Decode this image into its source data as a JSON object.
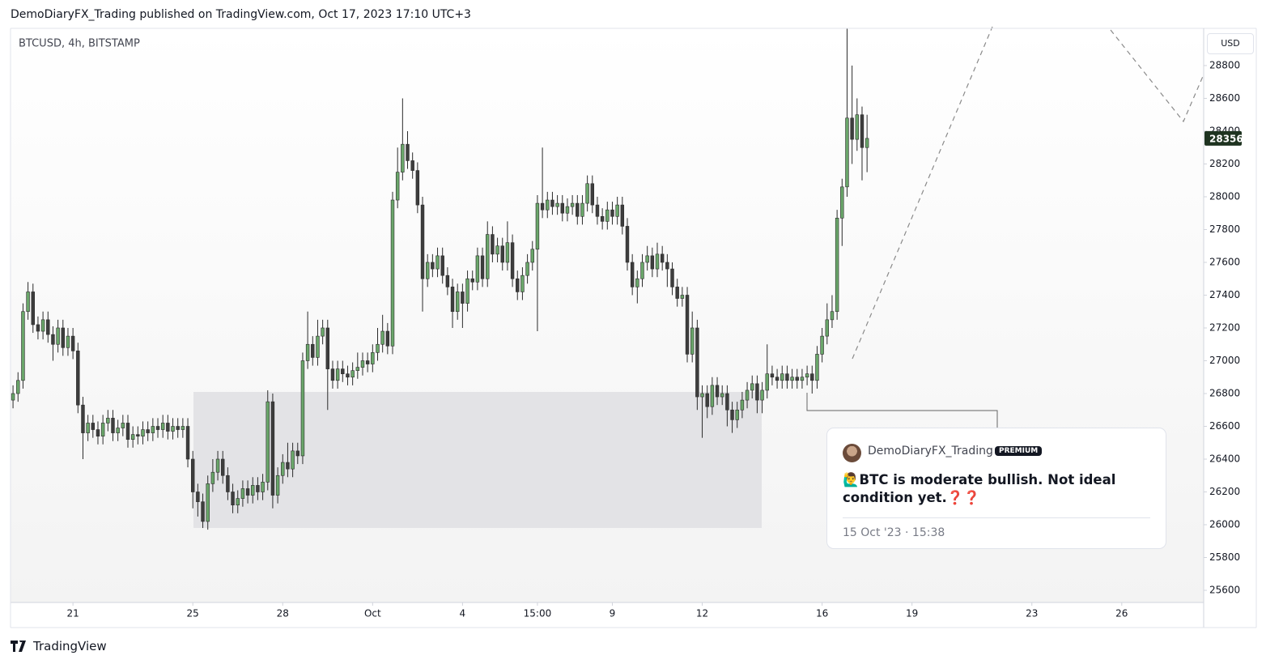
{
  "header": "DemoDiaryFX_Trading published on TradingView.com, Oct 17, 2023 17:10 UTC+3",
  "footer": "TradingView",
  "chart_data": {
    "type": "candlestick",
    "title": "BTCUSD, 4h, BITSTAMP",
    "currency": "USD",
    "up_color": "#6aa66a",
    "down_color": "#3d3d3d",
    "outline_color": "#2b2b2b",
    "last_price_color": "#1e3320",
    "xlim": [
      -0.5,
      238.4
    ],
    "ylim": [
      25526,
      29027
    ],
    "yticks": [
      25600,
      25800,
      26000,
      26200,
      26400,
      26600,
      26800,
      27000,
      27200,
      27400,
      27600,
      27800,
      28000,
      28200,
      28400,
      28600,
      28800
    ],
    "xticks": [
      {
        "value": 12,
        "label": "21"
      },
      {
        "value": 36,
        "label": "25"
      },
      {
        "value": 54,
        "label": "28"
      },
      {
        "value": 72,
        "label": "Oct"
      },
      {
        "value": 90,
        "label": "4"
      },
      {
        "value": 105,
        "label": "15:00"
      },
      {
        "value": 120,
        "label": "9"
      },
      {
        "value": 138,
        "label": "12"
      },
      {
        "value": 162,
        "label": "16"
      },
      {
        "value": 180,
        "label": "19"
      },
      {
        "value": 204,
        "label": "23"
      },
      {
        "value": 222,
        "label": "26"
      }
    ],
    "open": [
      26760,
      26800,
      26880,
      27300,
      27420,
      27220,
      27180,
      27250,
      27160,
      27100,
      27200,
      27080,
      27150,
      27060,
      26730,
      26560,
      26620,
      26580,
      26540,
      26620,
      26650,
      26560,
      26590,
      26620,
      26520,
      26550,
      26540,
      26580,
      26560,
      26600,
      26580,
      26620,
      26570,
      26600,
      26580,
      26600,
      26400,
      26200,
      26140,
      26020,
      26250,
      26320,
      26400,
      26300,
      26200,
      26120,
      26160,
      26220,
      26180,
      26240,
      26200,
      26260,
      26750,
      26180,
      26300,
      26380,
      26340,
      26450,
      26420,
      27000,
      27100,
      27020,
      27150,
      27200,
      26950,
      26880,
      26950,
      26920,
      26900,
      26940,
      26960,
      27000,
      26980,
      27050,
      27100,
      27180,
      27090,
      27980,
      28150,
      28320,
      28220,
      28160,
      27950,
      27500,
      27600,
      27560,
      27640,
      27520,
      27450,
      27300,
      27420,
      27350,
      27500,
      27480,
      27640,
      27500,
      27770,
      27650,
      27700,
      27600,
      27720,
      27500,
      27420,
      27520,
      27600,
      27680,
      27960,
      27920,
      27980,
      27940,
      27960,
      27900,
      27940,
      27960,
      27880,
      27960,
      28080,
      27950,
      27880,
      27850,
      27920,
      27880,
      27950,
      27820,
      27600,
      27450,
      27500,
      27600,
      27640,
      27560,
      27650,
      27600,
      27560,
      27450,
      27380,
      27400,
      27040,
      27200,
      26780,
      26800,
      26720,
      26850,
      26780,
      26800,
      26700,
      26640,
      26700,
      26760,
      26820,
      26860,
      26760,
      26820,
      26920,
      26900,
      26880,
      26920,
      26880,
      26900,
      26880,
      26900,
      26920,
      26880,
      27040,
      27150,
      27250,
      27300,
      27870,
      28060,
      28480,
      28350,
      28500,
      28300
    ],
    "high": [
      26850,
      26930,
      27350,
      27480,
      27470,
      27270,
      27300,
      27300,
      27210,
      27250,
      27250,
      27200,
      27200,
      27110,
      26780,
      26670,
      26670,
      26630,
      26670,
      26700,
      26700,
      26640,
      26670,
      26670,
      26600,
      26600,
      26630,
      26630,
      26650,
      26650,
      26670,
      26670,
      26650,
      26650,
      26650,
      26650,
      26450,
      26250,
      26190,
      26300,
      26400,
      26450,
      26450,
      26350,
      26250,
      26210,
      26270,
      26270,
      26290,
      26290,
      26310,
      26820,
      26800,
      26350,
      26430,
      26500,
      26500,
      26500,
      27050,
      27300,
      27150,
      27250,
      27250,
      27250,
      27000,
      27000,
      27000,
      26970,
      26990,
      27050,
      27050,
      27050,
      27100,
      27200,
      27280,
      27230,
      28030,
      28300,
      28600,
      28400,
      28270,
      28210,
      28000,
      27650,
      27650,
      27690,
      27690,
      27570,
      27500,
      27470,
      27470,
      27550,
      27550,
      27690,
      27690,
      27850,
      27820,
      27750,
      27750,
      27850,
      27770,
      27550,
      27570,
      27650,
      27730,
      28010,
      28300,
      28030,
      28030,
      28010,
      28010,
      27990,
      28010,
      28010,
      28010,
      28130,
      28130,
      28000,
      27930,
      27970,
      27970,
      28000,
      28000,
      27870,
      27650,
      27550,
      27650,
      27700,
      27690,
      27720,
      27700,
      27650,
      27600,
      27500,
      27450,
      27450,
      27300,
      27250,
      26850,
      26850,
      26900,
      26900,
      26850,
      26850,
      26750,
      26750,
      26810,
      26870,
      26910,
      26910,
      26870,
      27100,
      26970,
      26950,
      26970,
      26970,
      26950,
      26950,
      26950,
      26970,
      26970,
      27090,
      27200,
      27350,
      27400,
      27920,
      28110,
      29030,
      28800,
      28600,
      28550,
      28500
    ],
    "low": [
      26710,
      26750,
      26830,
      27250,
      27170,
      27130,
      27130,
      27110,
      27000,
      27050,
      27030,
      27030,
      27010,
      26680,
      26400,
      26510,
      26530,
      26490,
      26490,
      26570,
      26510,
      26510,
      26540,
      26470,
      26470,
      26490,
      26490,
      26510,
      26510,
      26530,
      26530,
      26520,
      26520,
      26530,
      26530,
      26350,
      26100,
      26050,
      25980,
      25970,
      26200,
      26270,
      26250,
      26150,
      26070,
      26070,
      26110,
      26130,
      26130,
      26150,
      26150,
      26210,
      26100,
      26130,
      26250,
      26290,
      26290,
      26370,
      26370,
      26950,
      26970,
      26970,
      27100,
      26700,
      26830,
      26830,
      26870,
      26850,
      26850,
      26890,
      26910,
      26930,
      26930,
      27000,
      27050,
      27040,
      27040,
      27930,
      28100,
      28170,
      28110,
      27900,
      27300,
      27450,
      27510,
      27510,
      27470,
      27400,
      27200,
      27250,
      27200,
      27300,
      27430,
      27430,
      27450,
      27450,
      27600,
      27600,
      27550,
      27550,
      27450,
      27370,
      27370,
      27470,
      27550,
      27180,
      27870,
      27870,
      27890,
      27890,
      27850,
      27850,
      27890,
      27830,
      27830,
      27910,
      27900,
      27830,
      27800,
      27800,
      27830,
      27830,
      27770,
      27550,
      27400,
      27350,
      27450,
      27550,
      27510,
      27510,
      27550,
      27450,
      27400,
      27330,
      27330,
      26990,
      26990,
      26700,
      26530,
      26650,
      26670,
      26730,
      26730,
      26600,
      26560,
      26590,
      26650,
      26710,
      26770,
      26680,
      26680,
      26770,
      26850,
      26830,
      26830,
      26830,
      26830,
      26830,
      26830,
      26850,
      26800,
      26830,
      26990,
      27100,
      27200,
      27250,
      27700,
      28000,
      28200,
      28280,
      28100,
      28150
    ],
    "close": [
      26800,
      26880,
      27300,
      27420,
      27220,
      27180,
      27250,
      27160,
      27100,
      27200,
      27080,
      27150,
      27060,
      26730,
      26560,
      26620,
      26580,
      26540,
      26620,
      26650,
      26560,
      26590,
      26620,
      26520,
      26550,
      26540,
      26580,
      26560,
      26600,
      26580,
      26620,
      26570,
      26600,
      26580,
      26600,
      26400,
      26200,
      26140,
      26020,
      26250,
      26320,
      26400,
      26300,
      26200,
      26120,
      26160,
      26220,
      26180,
      26240,
      26200,
      26260,
      26750,
      26180,
      26300,
      26380,
      26340,
      26450,
      26420,
      27000,
      27100,
      27020,
      27150,
      27200,
      26950,
      26880,
      26950,
      26920,
      26900,
      26940,
      26960,
      27000,
      26980,
      27050,
      27100,
      27180,
      27090,
      27980,
      28150,
      28320,
      28220,
      28160,
      27950,
      27500,
      27600,
      27560,
      27640,
      27520,
      27450,
      27300,
      27420,
      27350,
      27500,
      27480,
      27640,
      27500,
      27770,
      27650,
      27700,
      27600,
      27720,
      27500,
      27420,
      27520,
      27600,
      27680,
      27960,
      27920,
      27980,
      27940,
      27960,
      27900,
      27940,
      27960,
      27880,
      27960,
      28080,
      27950,
      27880,
      27850,
      27920,
      27880,
      27950,
      27820,
      27600,
      27450,
      27500,
      27600,
      27640,
      27560,
      27650,
      27600,
      27560,
      27450,
      27380,
      27400,
      27040,
      27200,
      26780,
      26800,
      26720,
      26850,
      26780,
      26800,
      26700,
      26640,
      26700,
      26760,
      26820,
      26860,
      26760,
      26820,
      26920,
      26900,
      26880,
      26920,
      26880,
      26900,
      26880,
      26900,
      26920,
      26880,
      27040,
      27150,
      27250,
      27300,
      27870,
      28060,
      28480,
      28350,
      28500,
      28300,
      28356
    ]
  },
  "note": {
    "author": "DemoDiaryFX_Trading",
    "badge": "PREMIUM",
    "text": "🙋‍♂️BTC is moderate bullish. Not ideal condition yet.❓❓",
    "date": "15 Oct '23 · 15:38"
  }
}
